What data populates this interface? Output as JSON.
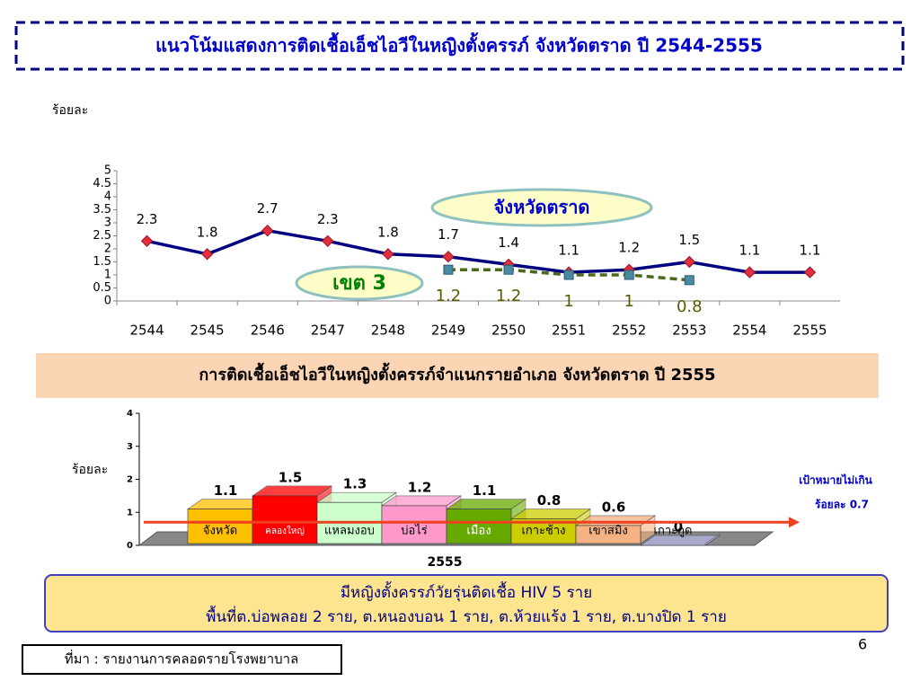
{
  "title": "แนวโน้มแสดงการติดเชื้อเอ็ชไอวีในหญิงตั้งครรภ์ จังหวัดตราด ปี 2544-2555",
  "chart_data": [
    {
      "type": "line",
      "y_label": "ร้อยละ",
      "categories": [
        "2544",
        "2545",
        "2546",
        "2547",
        "2548",
        "2549",
        "2550",
        "2551",
        "2552",
        "2553",
        "2554",
        "2555"
      ],
      "series": [
        {
          "name": "จังหวัดตราด",
          "color": "#000080",
          "values": [
            2.3,
            1.8,
            2.7,
            2.3,
            1.8,
            1.7,
            1.4,
            1.1,
            1.2,
            1.5,
            1.1,
            1.1
          ]
        },
        {
          "name": "เขต 3",
          "color": "#4a6a1a",
          "values": [
            null,
            null,
            null,
            null,
            null,
            1.2,
            1.2,
            1,
            1,
            0.8,
            null,
            null
          ]
        }
      ],
      "ylim": [
        0,
        5
      ],
      "yticks": [
        0,
        0.5,
        1,
        1.5,
        2,
        2.5,
        3,
        3.5,
        4,
        4.5,
        5
      ]
    },
    {
      "type": "bar3d",
      "title": "การติดเชื้อเอ็ชไอวีในหญิงตั้งครรภ์จำแนกรายอำเภอ จังหวัดตราด ปี 2555",
      "y_label": "ร้อยละ",
      "x_label": "2555",
      "categories": [
        "จังหวัด",
        "คลองใหญ่",
        "แหลมงอบ",
        "บ่อไร่",
        "เมือง",
        "เกาะช้าง",
        "เขาสมิง",
        "เกาะกูด"
      ],
      "values": [
        1.1,
        1.5,
        1.3,
        1.2,
        1.1,
        0.8,
        0.6,
        0
      ],
      "colors": [
        "#ffc000",
        "#ff0000",
        "#ccffcc",
        "#ff99cc",
        "#66aa00",
        "#cccc00",
        "#f4b183",
        "#b4b4e6"
      ],
      "ylim": [
        0,
        4
      ],
      "yticks": [
        0,
        1,
        2,
        3,
        4
      ],
      "target_line": 0.7,
      "target_label": [
        "เป้าหมายไม่เกิน",
        "ร้อยละ 0.7"
      ]
    }
  ],
  "info": [
    "มีหญิงตั้งครรภ์วัยรุ่นติดเชื้อ HIV 5 ราย",
    "พื้นที่ต.บ่อพลอย 2 ราย, ต.หนองบอน 1 ราย, ต.ห้วยแร้ง 1 ราย, ต.บางปิด 1 ราย"
  ],
  "source": "ที่มา : รายงานการคลอดรายโรงพยาบาล",
  "page": "6"
}
